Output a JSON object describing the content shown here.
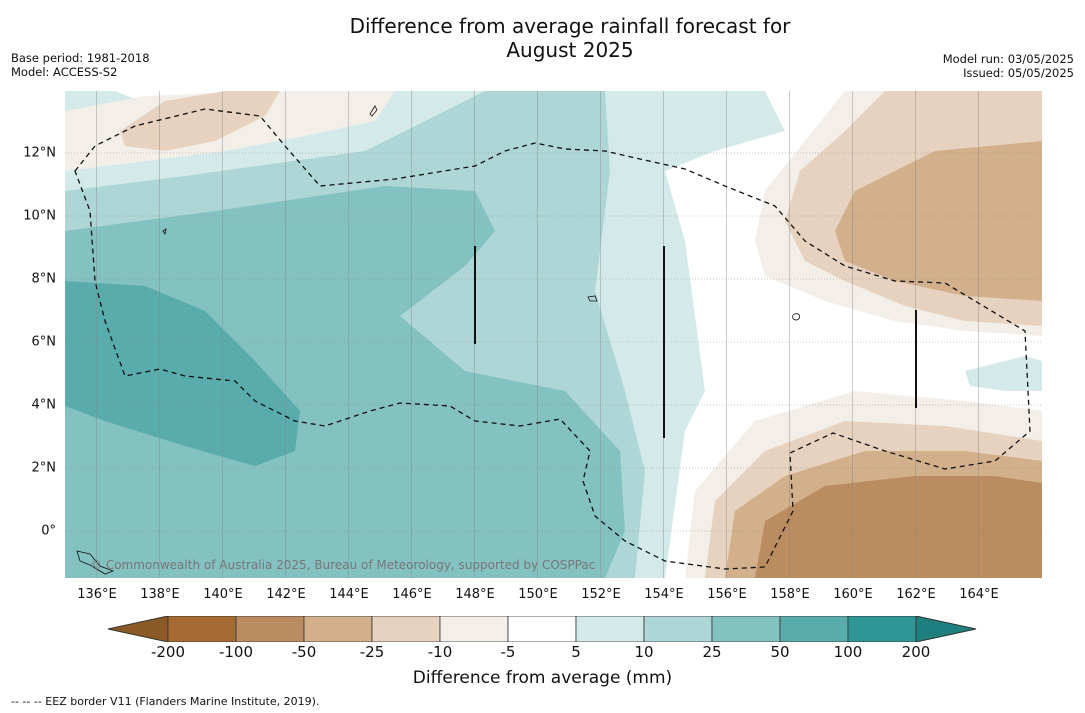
{
  "title_line1": "Difference from average rainfall forecast for",
  "title_line2": "August 2025",
  "meta_left": {
    "base_period": "Base period: 1981-2018",
    "model": "Model: ACCESS-S2"
  },
  "meta_right": {
    "model_run": "Model run: 03/05/2025",
    "issued": "Issued: 05/05/2025"
  },
  "map": {
    "x_ticks": [
      "136°E",
      "138°E",
      "140°E",
      "142°E",
      "144°E",
      "146°E",
      "148°E",
      "150°E",
      "152°E",
      "154°E",
      "156°E",
      "158°E",
      "160°E",
      "162°E",
      "164°E"
    ],
    "y_ticks": [
      "12°N",
      "10°N",
      "8°N",
      "6°N",
      "4°N",
      "2°N",
      "0°"
    ],
    "copyright": "© Commonwealth of Australia 2025, Bureau of Meteorology, supported by COSPPac"
  },
  "colorbar": {
    "ticks": [
      "-200",
      "-100",
      "-50",
      "-25",
      "-10",
      "-5",
      "5",
      "10",
      "25",
      "50",
      "100",
      "200"
    ],
    "colors": [
      "#a46c33",
      "#bb8c60",
      "#d3b08c",
      "#e6d2bf",
      "#f4eee8",
      "#ffffff",
      "#d4eaea",
      "#aed6d6",
      "#84c1c1",
      "#5aabab",
      "#2f9696"
    ],
    "under_color": "#8c5a26",
    "over_color": "#1f7f7f",
    "label": "Difference from average (mm)"
  },
  "footnote": "--  --  -- EEZ border V11 (Flanders Marine Institute, 2019)."
}
